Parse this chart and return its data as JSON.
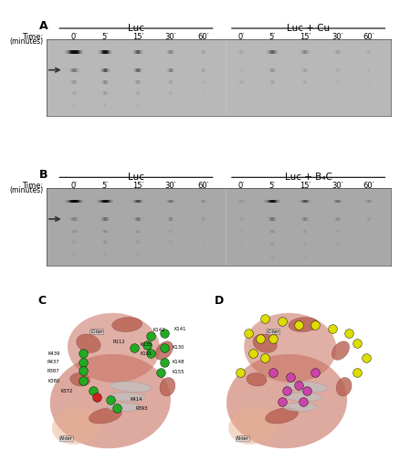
{
  "panel_A_label": "A",
  "panel_B_label": "B",
  "panel_C_label": "C",
  "panel_D_label": "D",
  "luc_label": "Luc",
  "luc_cu_label": "Luc + Cu",
  "luc_b4c_label": "Luc + B₄C",
  "time_label": "Time:",
  "minutes_label": "(minutes)",
  "time_points": [
    "0′",
    "5′",
    "15′",
    "30′",
    "60′"
  ],
  "bg_gel_A": "#b0b0b0",
  "bg_gel_B": "#a8a8a8",
  "gel_top_color": "#1a1a1a",
  "gel_mid_color": "#555555",
  "arrow_color": "#333333",
  "fig_bg": "#ffffff",
  "panel_label_fontsize": 9,
  "axis_label_fontsize": 6.5,
  "tick_fontsize": 6,
  "title_fontsize": 7.5
}
